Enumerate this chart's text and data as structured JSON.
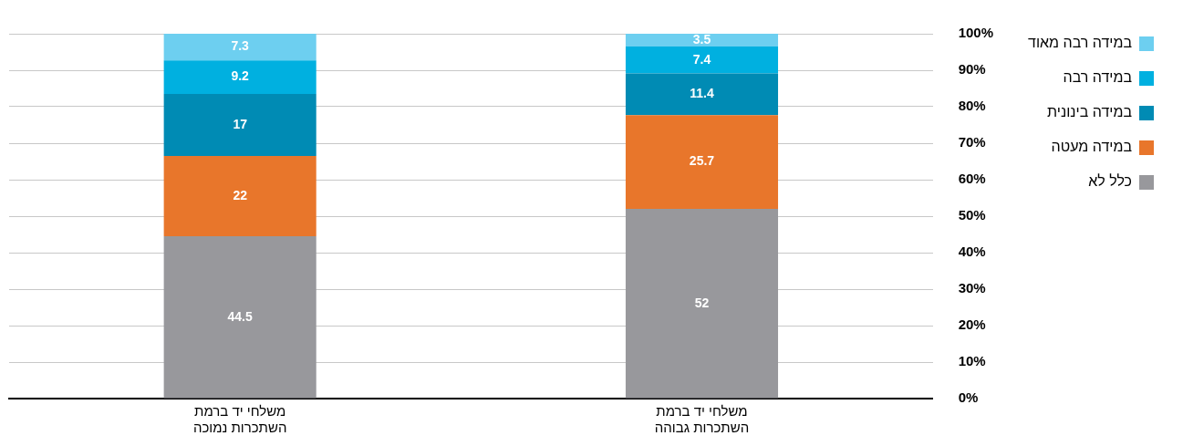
{
  "chart_data": {
    "type": "bar",
    "stacked": true,
    "data_labels": true,
    "grid": "y",
    "legend": "top right",
    "categories": [
      "משלחי יד ברמת השתכרות נמוכה",
      "משלחי יד ברמת השתכרות גבוהה"
    ],
    "series": [
      {
        "name": "כלל לא",
        "color": "#98989c",
        "values": [
          44.5,
          52
        ]
      },
      {
        "name": "במידה מעטה",
        "color": "#e8762b",
        "values": [
          22,
          25.7
        ]
      },
      {
        "name": "במידה בינונית",
        "color": "#008bb4",
        "values": [
          17,
          11.4
        ]
      },
      {
        "name": "במידה רבה",
        "color": "#00b0e0",
        "values": [
          9.2,
          7.4
        ]
      },
      {
        "name": "במידה רבה מאוד",
        "color": "#6dcff0",
        "values": [
          7.3,
          3.5
        ]
      }
    ],
    "ylim": [
      0,
      100
    ],
    "yticks": [
      {
        "value": 0,
        "label": "0%"
      },
      {
        "value": 10,
        "label": "10%"
      },
      {
        "value": 20,
        "label": "20%"
      },
      {
        "value": 30,
        "label": "30%"
      },
      {
        "value": 40,
        "label": "40%"
      },
      {
        "value": 50,
        "label": "50%"
      },
      {
        "value": 60,
        "label": "60%"
      },
      {
        "value": 70,
        "label": "70%"
      },
      {
        "value": 80,
        "label": "80%"
      },
      {
        "value": 90,
        "label": "90%"
      },
      {
        "value": 100,
        "label": "100%"
      }
    ]
  }
}
